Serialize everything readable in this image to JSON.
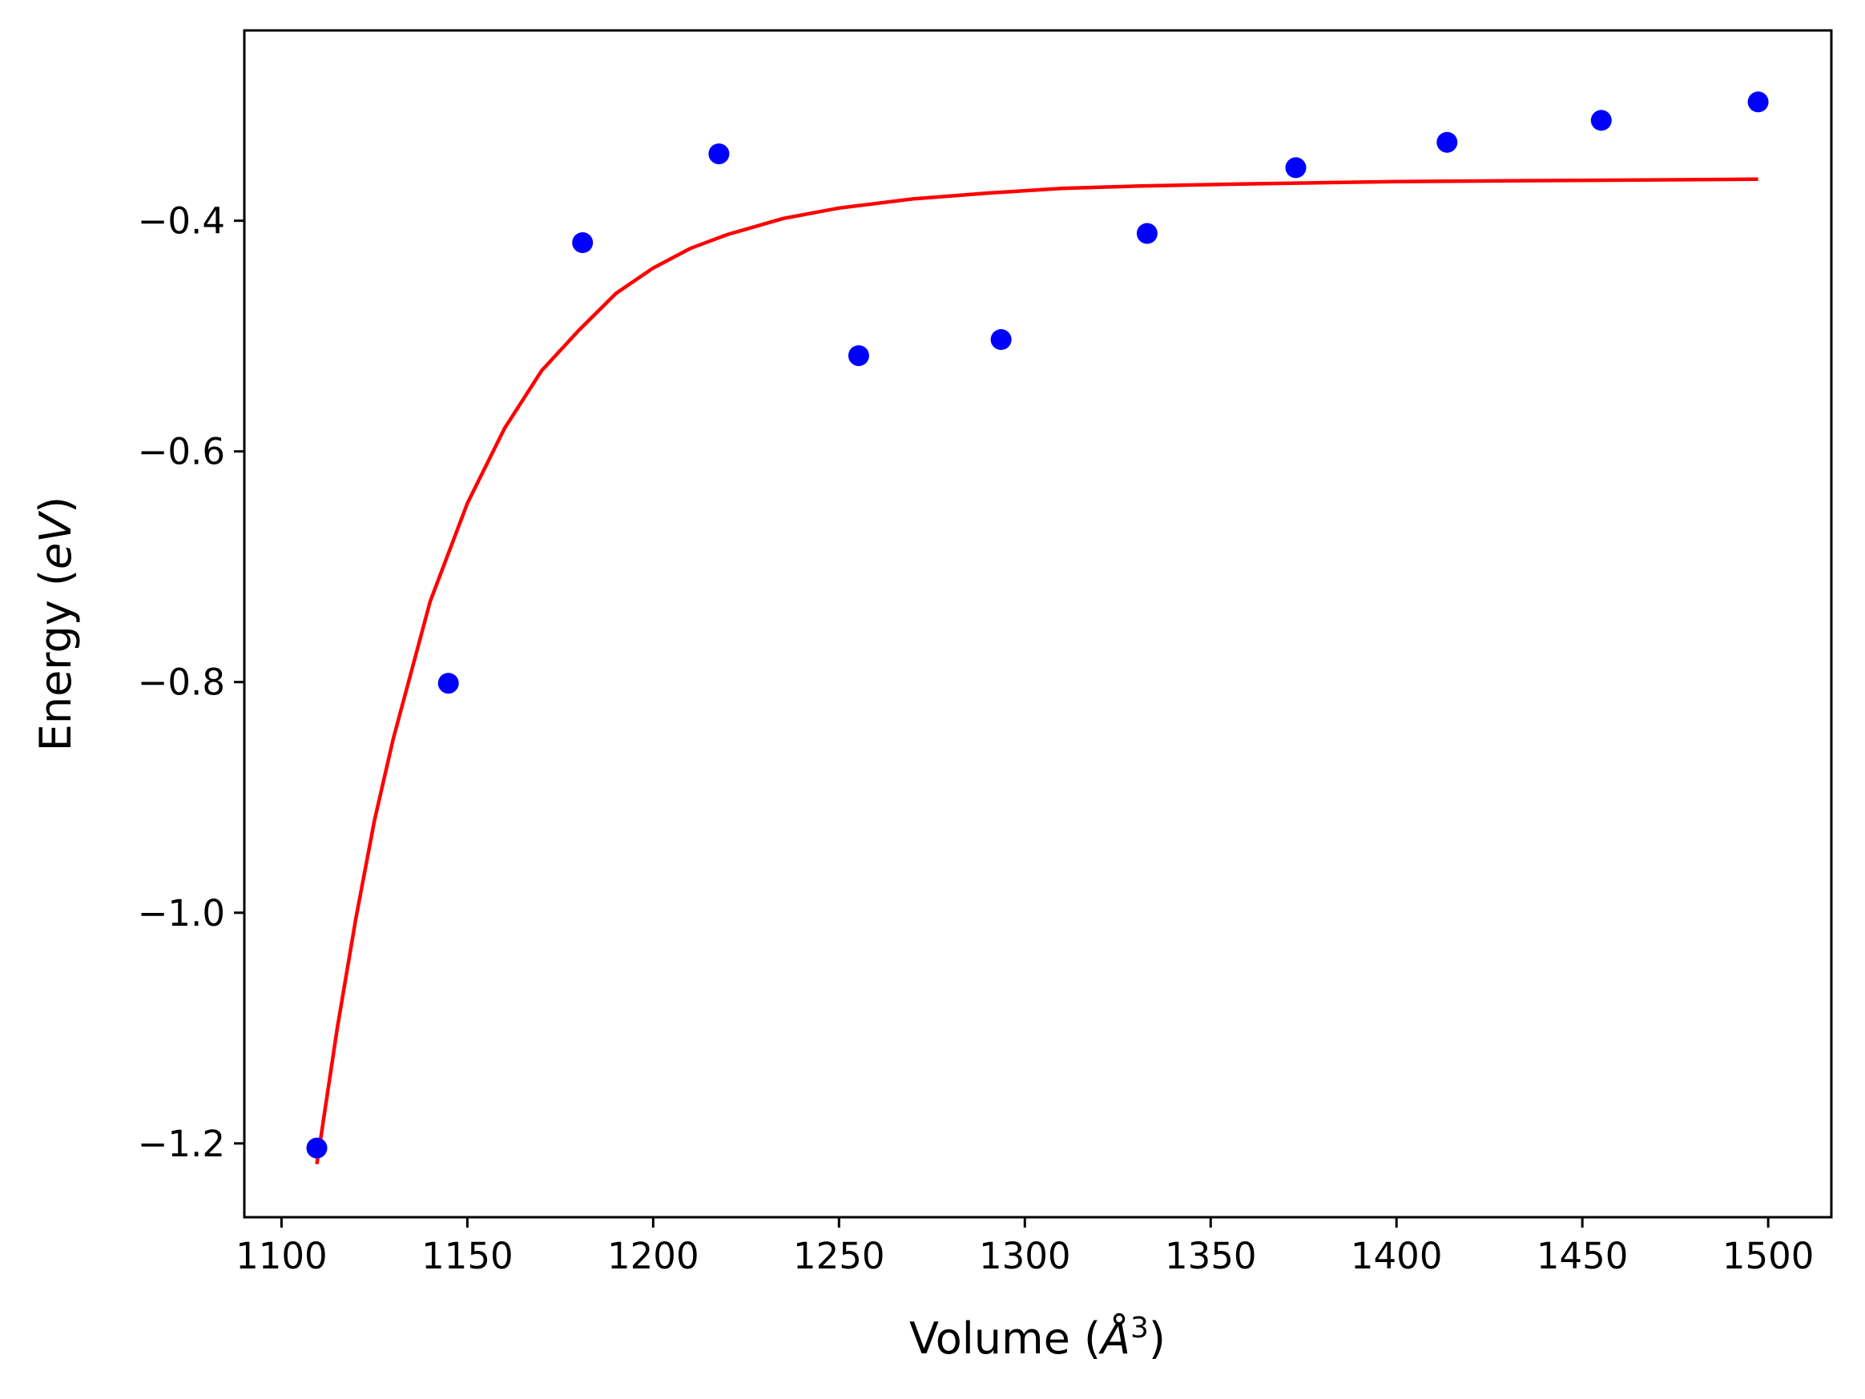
{
  "chart_data": {
    "type": "scatter",
    "title": "",
    "xlabel": {
      "prefix": "Volume (",
      "unit": "Å",
      "exponent": "3",
      "suffix": ")"
    },
    "ylabel": {
      "prefix": "Energy (",
      "unit": "eV",
      "suffix": ")"
    },
    "xlim": [
      1090,
      1517
    ],
    "ylim": [
      -1.264,
      -0.235
    ],
    "x_ticks": [
      1100,
      1150,
      1200,
      1250,
      1300,
      1350,
      1400,
      1450,
      1500
    ],
    "x_tick_labels": [
      "1100",
      "1150",
      "1200",
      "1250",
      "1300",
      "1350",
      "1400",
      "1450",
      "1500"
    ],
    "y_ticks": [
      -1.2,
      -1.0,
      -0.8,
      -0.6,
      -0.4
    ],
    "y_tick_labels": [
      "−1.2",
      "−1.0",
      "−0.8",
      "−0.6",
      "−0.4"
    ],
    "grid": false,
    "legend": "none",
    "series": [
      {
        "kind": "points",
        "color": "#0000ff",
        "marker": "circle",
        "x": [
          1109.5,
          1144.9,
          1181.0,
          1217.7,
          1255.3,
          1293.6,
          1332.9,
          1372.9,
          1413.6,
          1455.1,
          1497.3
        ],
        "y": [
          -1.204,
          -0.801,
          -0.419,
          -0.342,
          -0.517,
          -0.503,
          -0.411,
          -0.354,
          -0.332,
          -0.313,
          -0.297
        ]
      },
      {
        "kind": "fit-line",
        "color": "#ff0000",
        "x": [
          1109.5,
          1115,
          1120,
          1125,
          1130,
          1140,
          1150,
          1160,
          1170,
          1180,
          1190,
          1200,
          1210,
          1220,
          1235,
          1250,
          1270,
          1290,
          1310,
          1330,
          1360,
          1400,
          1450,
          1497.3
        ],
        "y": [
          -1.218,
          -1.1,
          -1.005,
          -0.92,
          -0.85,
          -0.73,
          -0.645,
          -0.58,
          -0.53,
          -0.495,
          -0.463,
          -0.441,
          -0.424,
          -0.412,
          -0.398,
          -0.389,
          -0.381,
          -0.376,
          -0.372,
          -0.37,
          -0.368,
          -0.366,
          -0.365,
          -0.364
        ]
      }
    ]
  }
}
